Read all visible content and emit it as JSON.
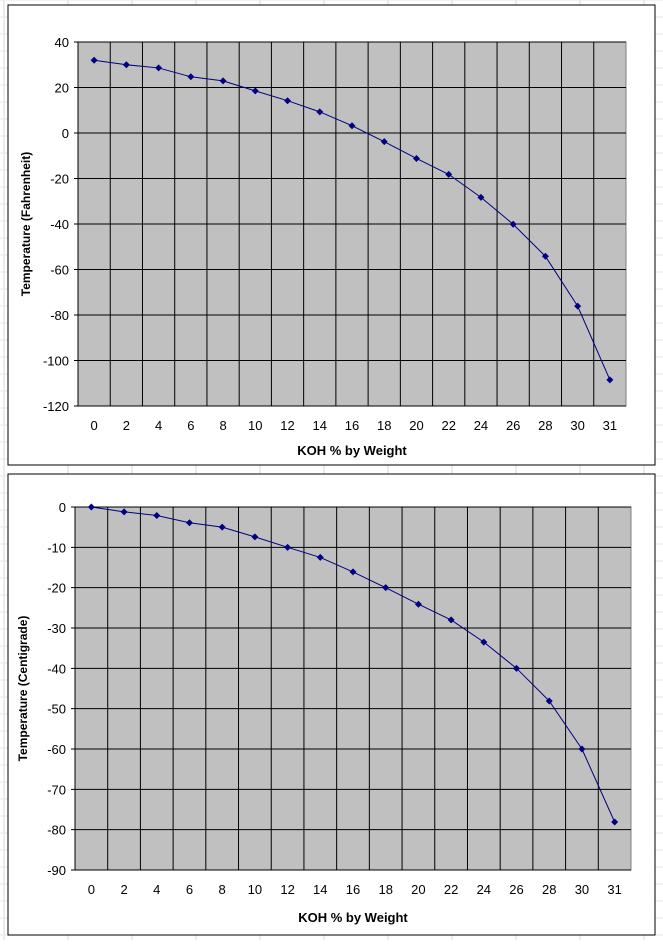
{
  "chart_data": [
    {
      "type": "line",
      "title": "",
      "xlabel": "KOH % by Weight",
      "ylabel": "Temperature (Fahrenheit)",
      "categories": [
        "0",
        "2",
        "4",
        "6",
        "8",
        "10",
        "12",
        "14",
        "16",
        "18",
        "20",
        "22",
        "24",
        "26",
        "28",
        "30",
        "31"
      ],
      "ylim": [
        -120,
        40
      ],
      "ytick_step": 20,
      "yticks": [
        "40",
        "20",
        "0",
        "-20",
        "-40",
        "-60",
        "-80",
        "-100",
        "-120"
      ],
      "grid": true,
      "series": [
        {
          "name": "Fahrenheit",
          "color": "#000080",
          "values": [
            32,
            30,
            28.6,
            24.7,
            22.9,
            18.5,
            14.2,
            9.3,
            3.2,
            -3.8,
            -11.2,
            -18.2,
            -28.3,
            -40.1,
            -54.2,
            -76.1,
            -108.5
          ]
        }
      ]
    },
    {
      "type": "line",
      "title": "",
      "xlabel": "KOH % by Weight",
      "ylabel": "Temperature (Centigrade)",
      "categories": [
        "0",
        "2",
        "4",
        "6",
        "8",
        "10",
        "12",
        "14",
        "16",
        "18",
        "20",
        "22",
        "24",
        "26",
        "28",
        "30",
        "31"
      ],
      "ylim": [
        -90,
        0
      ],
      "ytick_step": 10,
      "yticks": [
        "0",
        "-10",
        "-20",
        "-30",
        "-40",
        "-50",
        "-60",
        "-70",
        "-80",
        "-90"
      ],
      "grid": true,
      "series": [
        {
          "name": "Centigrade",
          "color": "#000080",
          "values": [
            0,
            -1.2,
            -2.1,
            -3.9,
            -5,
            -7.4,
            -10,
            -12.5,
            -16.1,
            -20,
            -24.1,
            -28,
            -33.5,
            -40,
            -48.1,
            -60,
            -78.1
          ]
        }
      ]
    }
  ]
}
